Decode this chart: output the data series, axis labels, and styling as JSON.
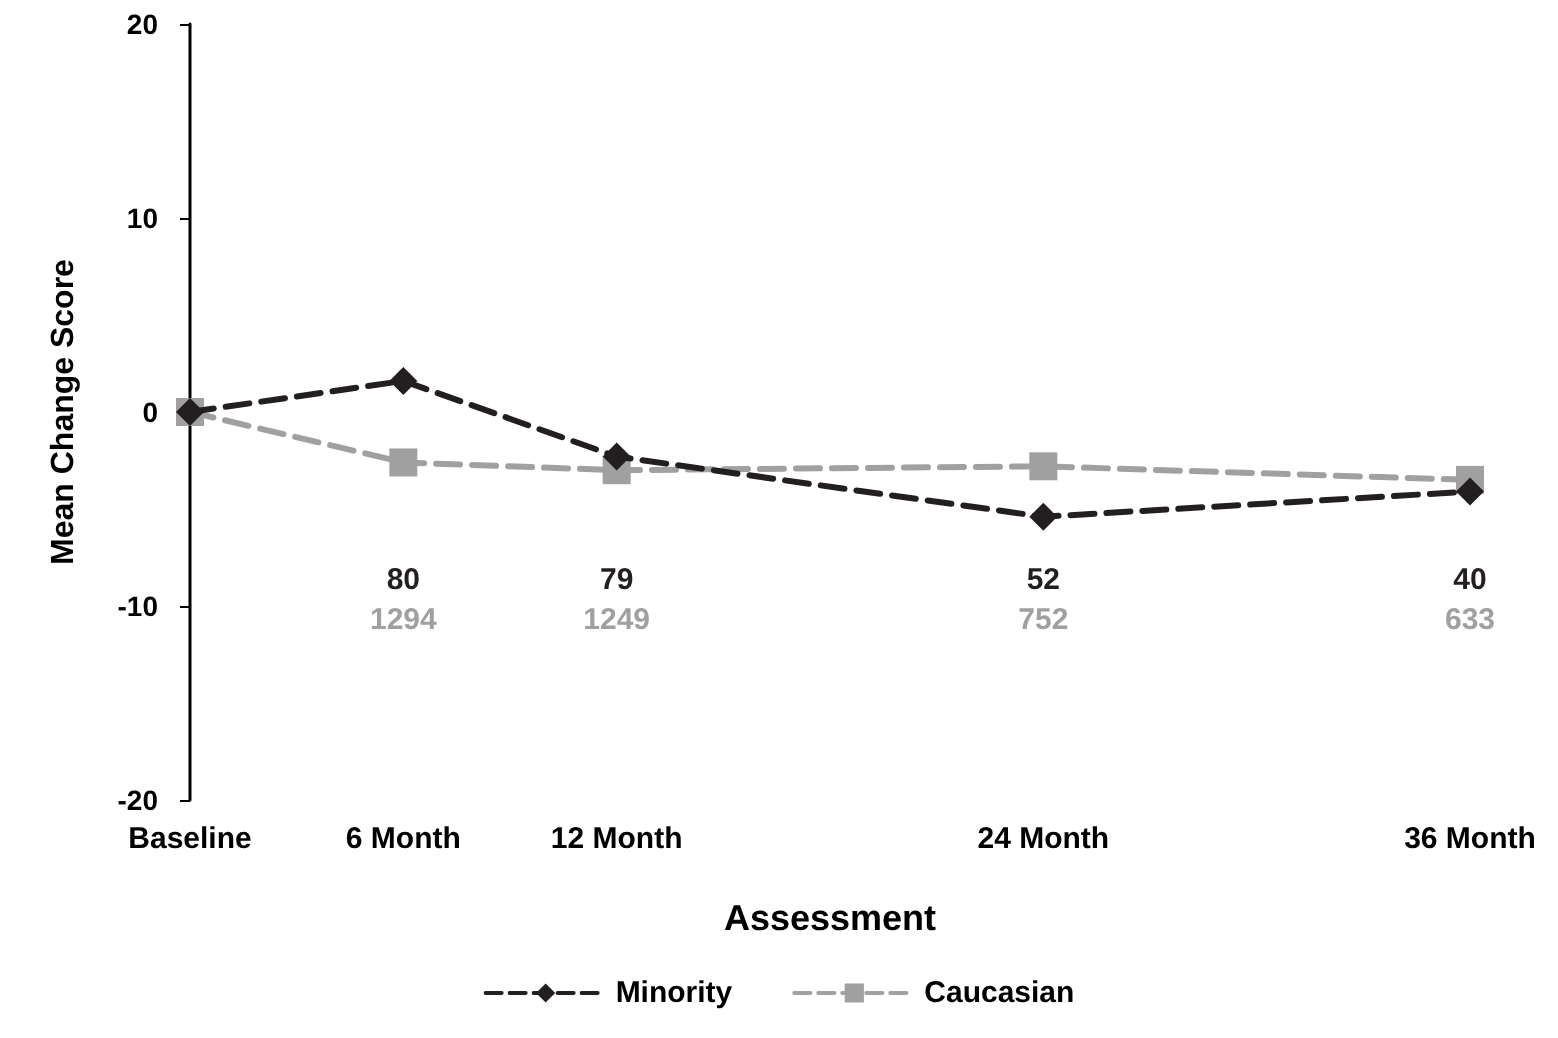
{
  "chart_data": {
    "type": "line",
    "xlabel": "Assessment",
    "ylabel": "Mean Change Score",
    "x": [
      0,
      6,
      12,
      24,
      36
    ],
    "xlim": [
      0,
      36
    ],
    "xticks": [
      {
        "value": 0,
        "label": "Baseline"
      },
      {
        "value": 6,
        "label": "6 Month"
      },
      {
        "value": 12,
        "label": "12 Month"
      },
      {
        "value": 24,
        "label": "24 Month"
      },
      {
        "value": 36,
        "label": "36 Month"
      }
    ],
    "ylim": [
      -20,
      20
    ],
    "yticks": [
      -20,
      -10,
      0,
      10,
      20
    ],
    "series": [
      {
        "name": "Minority",
        "color": "#231f20",
        "marker": "diamond",
        "values": [
          0,
          1.6,
          -2.3,
          -5.4,
          -4.1
        ]
      },
      {
        "name": "Caucasian",
        "color": "#a0a0a0",
        "marker": "square",
        "values": [
          0,
          -2.6,
          -3.0,
          -2.8,
          -3.5
        ]
      }
    ],
    "line_style": "dashed",
    "grid": false,
    "legend": "bottom",
    "annotations": [
      "80",
      "79",
      "52",
      "40",
      "1294",
      "1249",
      "752",
      "633"
    ]
  }
}
